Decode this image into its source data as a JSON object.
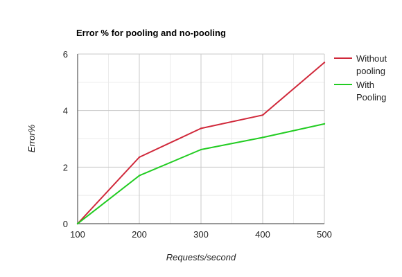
{
  "chart_data": {
    "type": "line",
    "title": "Error %  for pooling and no-pooling",
    "xlabel": "Requests/second",
    "ylabel": "Error%",
    "x": [
      100,
      200,
      300,
      400,
      500
    ],
    "xlim": [
      100,
      500
    ],
    "ylim": [
      0,
      6
    ],
    "xticks": [
      "100",
      "200",
      "300",
      "400",
      "500"
    ],
    "yticks": [
      "0",
      "2",
      "4",
      "6"
    ],
    "grid": true,
    "legend_position": "right",
    "series": [
      {
        "name": "Without pooling",
        "name_lines": [
          "Without",
          "pooling"
        ],
        "color": "#d0283a",
        "values": [
          0,
          2.35,
          3.37,
          3.84,
          5.7
        ]
      },
      {
        "name": "With Pooling",
        "name_lines": [
          "With",
          "Pooling"
        ],
        "color": "#22cc22",
        "values": [
          0,
          1.7,
          2.62,
          3.05,
          3.53
        ]
      }
    ]
  }
}
